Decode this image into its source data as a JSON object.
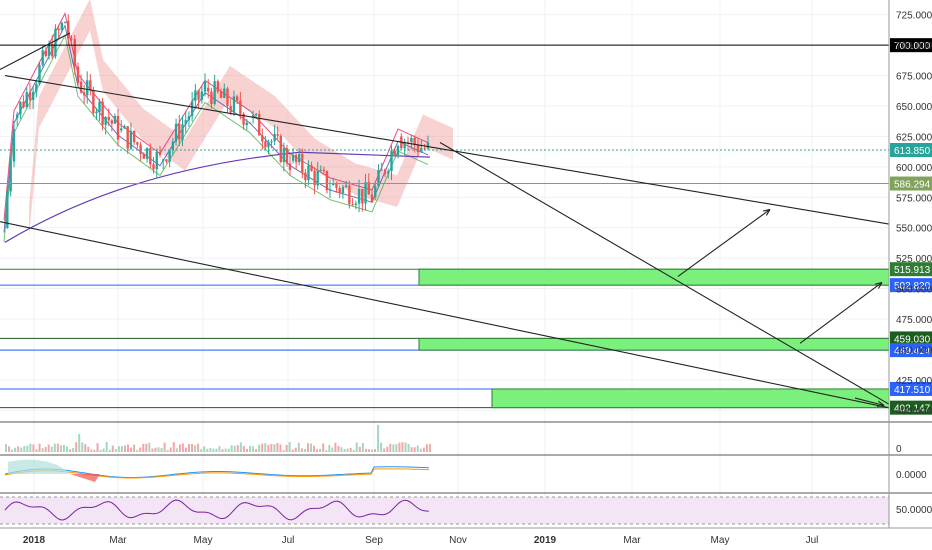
{
  "chart_data": {
    "type": "candlestick-with-indicators",
    "title": "",
    "price_axis": {
      "ticks": [
        "725.000",
        "700.000",
        "675.000",
        "650.000",
        "625.000",
        "600.000",
        "575.000",
        "550.000",
        "525.000",
        "500.000",
        "475.000",
        "450.000",
        "425.000",
        "400.000"
      ],
      "range": [
        392,
        733
      ]
    },
    "time_axis": {
      "labels": [
        "2018",
        "Mar",
        "May",
        "Jul",
        "Sep",
        "Nov",
        "2019",
        "Mar",
        "May",
        "Jul"
      ]
    },
    "price_tags": [
      {
        "label": "700.000",
        "value": 700.0,
        "color": "#000000"
      },
      {
        "label": "613.850",
        "value": 613.85,
        "color": "#26a69a"
      },
      {
        "label": "586.294",
        "value": 586.294,
        "color": "#7fa35a"
      },
      {
        "label": "515.913",
        "value": 515.913,
        "color": "#2e7d32"
      },
      {
        "label": "502.820",
        "value": 502.82,
        "color": "#2962ff"
      },
      {
        "label": "459.030",
        "value": 459.03,
        "color": "#1b5e20"
      },
      {
        "label": "449.414",
        "value": 449.414,
        "color": "#2962ff"
      },
      {
        "label": "417.510",
        "value": 417.51,
        "color": "#2962ff"
      },
      {
        "label": "402.147",
        "value": 402.147,
        "color": "#1b5e20"
      }
    ],
    "support_zones": [
      {
        "from": 502.82,
        "to": 515.913,
        "start": "Oct 2018"
      },
      {
        "from": 449.414,
        "to": 459.03,
        "start": "Oct 2018"
      },
      {
        "from": 402.147,
        "to": 417.51,
        "start": "Nov 2018"
      }
    ],
    "price_series_approx": [
      {
        "t": "Jan 2018",
        "close": 550
      },
      {
        "t": "Jan 2018",
        "close": 640
      },
      {
        "t": "Feb 2018",
        "close": 720
      },
      {
        "t": "Feb 2018",
        "close": 670
      },
      {
        "t": "Mar 2018",
        "close": 630
      },
      {
        "t": "Apr 2018",
        "close": 605
      },
      {
        "t": "May 2018",
        "close": 665
      },
      {
        "t": "Jun 2018",
        "close": 640
      },
      {
        "t": "Jul 2018",
        "close": 605
      },
      {
        "t": "Aug 2018",
        "close": 585
      },
      {
        "t": "Sep 2018",
        "close": 575
      },
      {
        "t": "Sep 2018",
        "close": 625
      },
      {
        "t": "Oct 2018",
        "close": 613.85
      }
    ],
    "indicator_panels": {
      "volume": {
        "axis_label": "0"
      },
      "macd": {
        "axis_label": "0.0000"
      },
      "rsi": {
        "axis_label": "50.0000"
      }
    },
    "colors": {
      "up": "#26a69a",
      "down": "#ef5350",
      "zone": "#7cf07c",
      "cloud_green": "#a5d6a7",
      "cloud_red": "#ef9a9a",
      "rsi_bg": "#f3e5f5",
      "rsi_line": "#7b1fa2"
    }
  }
}
